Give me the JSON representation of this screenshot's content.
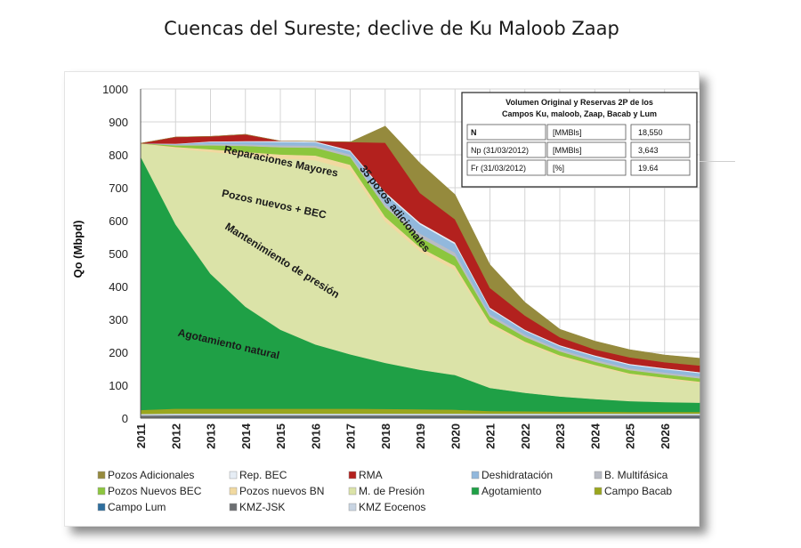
{
  "title": "Cuencas del Sureste; declive de Ku Maloob Zaap",
  "chart_data": {
    "type": "area",
    "stacked": true,
    "ylabel": "Qo (Mbpd)",
    "xlabel": "",
    "ylim": [
      0,
      1000
    ],
    "yticks": [
      0,
      100,
      200,
      300,
      400,
      500,
      600,
      700,
      800,
      900,
      1000
    ],
    "xlim": [
      2011,
      2027
    ],
    "xticks": [
      "2011",
      "2012",
      "2013",
      "2014",
      "2015",
      "2016",
      "2017",
      "2018",
      "2019",
      "2020",
      "2021",
      "2022",
      "2023",
      "2024",
      "2025",
      "2026"
    ],
    "grid": true,
    "legend_position": "bottom",
    "x": [
      2011,
      2012,
      2013,
      2014,
      2015,
      2016,
      2017,
      2018,
      2019,
      2020,
      2021,
      2022,
      2023,
      2024,
      2025,
      2026,
      2027
    ],
    "series": [
      {
        "name": "Campo Lum",
        "color": "#2e6e9e",
        "values": [
          2,
          3,
          3,
          3,
          3,
          3,
          3,
          3,
          3,
          3,
          3,
          3,
          3,
          3,
          3,
          3,
          3
        ]
      },
      {
        "name": "KMZ-JSK",
        "color": "#6d6f72",
        "values": [
          6,
          6,
          6,
          6,
          6,
          6,
          6,
          6,
          6,
          6,
          6,
          6,
          6,
          6,
          6,
          6,
          6
        ]
      },
      {
        "name": "KMZ Eocenos",
        "color": "#c8d4e2",
        "values": [
          5,
          5,
          5,
          5,
          5,
          5,
          5,
          5,
          5,
          5,
          5,
          5,
          5,
          5,
          5,
          5,
          5
        ]
      },
      {
        "name": "Campo Bacab",
        "color": "#9aa61e",
        "values": [
          12,
          15,
          15,
          15,
          15,
          15,
          15,
          14,
          13,
          12,
          8,
          7,
          6,
          6,
          5,
          5,
          5
        ]
      },
      {
        "name": "Agotamiento",
        "color": "#1fa046",
        "values": [
          770,
          560,
          410,
          310,
          240,
          195,
          165,
          140,
          120,
          105,
          70,
          56,
          46,
          38,
          33,
          30,
          28
        ]
      },
      {
        "name": "M. de Presión",
        "color": "#dbe3a8",
        "values": [
          40,
          230,
          370,
          460,
          520,
          560,
          560,
          430,
          360,
          320,
          190,
          150,
          120,
          100,
          80,
          70,
          60
        ]
      },
      {
        "name": "Pozos nuevos BN",
        "color": "#f1d9a0",
        "values": [
          0,
          5,
          8,
          10,
          12,
          14,
          16,
          14,
          12,
          12,
          8,
          6,
          5,
          4,
          4,
          4,
          4
        ]
      },
      {
        "name": "Pozos Nuevos BEC",
        "color": "#8cc63e",
        "values": [
          0,
          5,
          12,
          18,
          22,
          24,
          24,
          30,
          30,
          28,
          18,
          14,
          12,
          10,
          10,
          10,
          10
        ]
      },
      {
        "name": "B. Multifásica",
        "color": "#b9bcc4",
        "values": [
          0,
          2,
          4,
          5,
          6,
          6,
          7,
          10,
          12,
          12,
          8,
          7,
          6,
          6,
          6,
          6,
          6
        ]
      },
      {
        "name": "Deshidratación",
        "color": "#92b8dc",
        "values": [
          0,
          2,
          6,
          8,
          10,
          10,
          10,
          30,
          28,
          26,
          16,
          12,
          10,
          10,
          10,
          10,
          10
        ]
      },
      {
        "name": "Rep. BEC",
        "color": "#e6edf5",
        "values": [
          0,
          1,
          2,
          2,
          3,
          3,
          3,
          5,
          5,
          5,
          4,
          3,
          3,
          3,
          3,
          3,
          3
        ]
      },
      {
        "name": "RMA",
        "color": "#b3211e",
        "values": [
          0,
          20,
          15,
          20,
          0,
          0,
          25,
          150,
          90,
          70,
          60,
          43,
          24,
          18,
          20,
          18,
          20
        ]
      },
      {
        "name": "Pozos Adicionales",
        "color": "#958a3d",
        "values": [
          0,
          0,
          0,
          0,
          0,
          0,
          0,
          50,
          90,
          75,
          70,
          40,
          24,
          25,
          23,
          22,
          22
        ]
      }
    ],
    "annotations": [
      {
        "text": "Reparaciones Mayores",
        "x": 2015.0,
        "y": 770
      },
      {
        "text": "35 pozos adicionales",
        "x": 2018.2,
        "y": 630
      },
      {
        "text": "Pozos nuevos + BEC",
        "x": 2014.8,
        "y": 640
      },
      {
        "text": "Mantenimiento de presión",
        "x": 2015.0,
        "y": 470
      },
      {
        "text": "Agotamiento natural",
        "x": 2013.5,
        "y": 215
      }
    ],
    "table": {
      "title_line1": "Volumen Original y Reservas 2P de los",
      "title_line2": "Campos Ku, maloob, Zaap, Bacab y Lum",
      "rows": [
        {
          "label": "N",
          "unit": "[MMBls]",
          "value": "18,550"
        },
        {
          "label": "Np (31/03/2012)",
          "unit": "[MMBls]",
          "value": "3,643"
        },
        {
          "label": "Fr (31/03/2012)",
          "unit": "[%]",
          "value": "19.64"
        }
      ]
    },
    "legend": [
      {
        "name": "Pozos Adicionales",
        "color": "#958a3d"
      },
      {
        "name": "Rep. BEC",
        "color": "#e6edf5"
      },
      {
        "name": "RMA",
        "color": "#b3211e"
      },
      {
        "name": "Deshidratación",
        "color": "#92b8dc"
      },
      {
        "name": "B. Multifásica",
        "color": "#b9bcc4"
      },
      {
        "name": "Pozos Nuevos BEC",
        "color": "#8cc63e"
      },
      {
        "name": "Pozos nuevos BN",
        "color": "#f1d9a0"
      },
      {
        "name": "M. de Presión",
        "color": "#dbe3a8"
      },
      {
        "name": "Agotamiento",
        "color": "#1fa046"
      },
      {
        "name": "Campo Bacab",
        "color": "#9aa61e"
      },
      {
        "name": "Campo Lum",
        "color": "#2e6e9e"
      },
      {
        "name": "KMZ-JSK",
        "color": "#6d6f72"
      },
      {
        "name": "KMZ Eocenos",
        "color": "#c8d4e2"
      }
    ]
  }
}
